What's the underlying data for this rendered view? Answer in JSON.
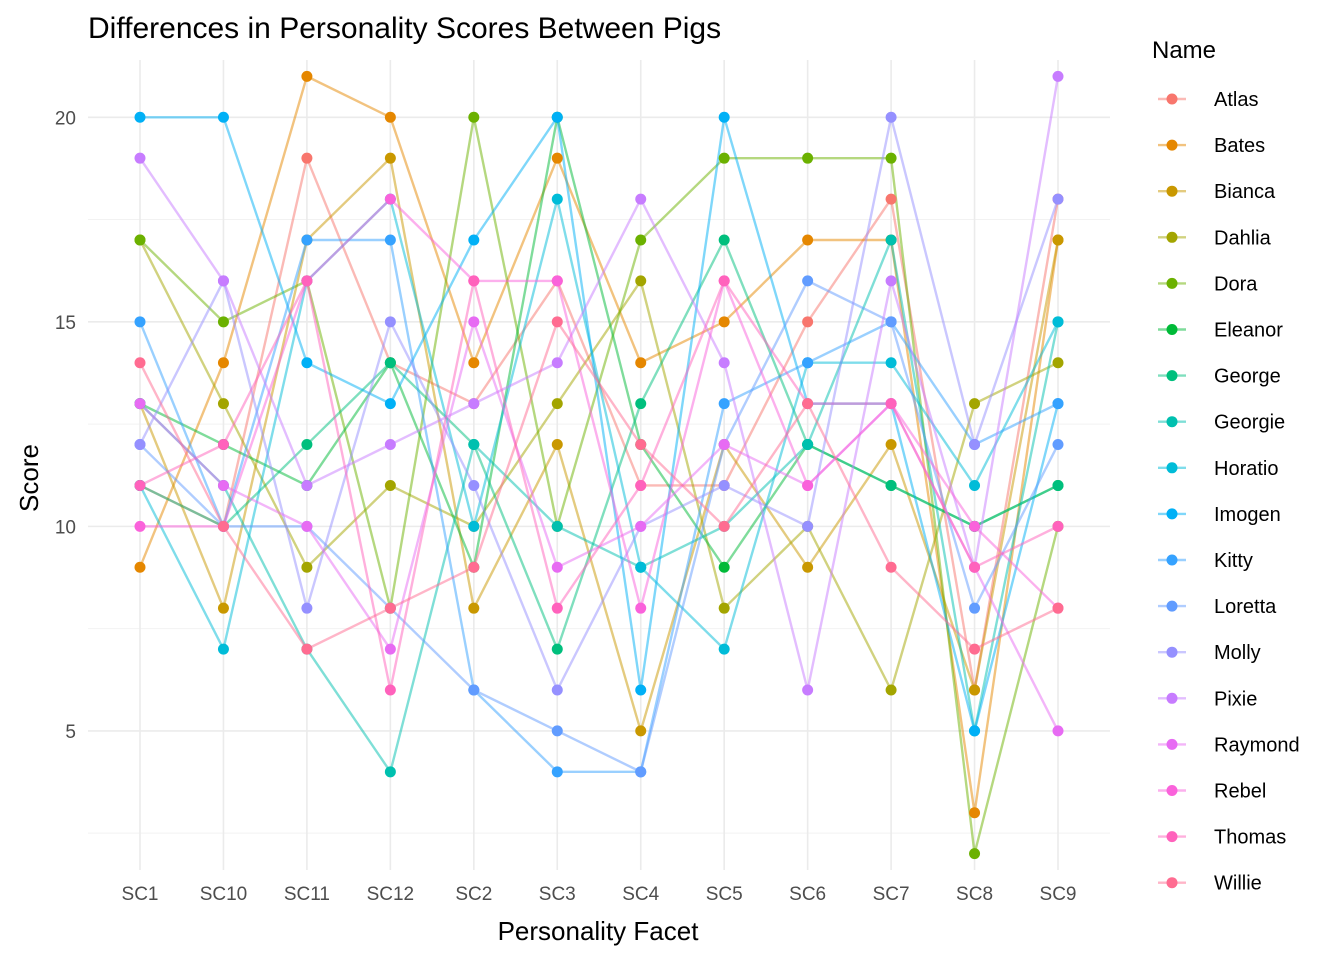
{
  "chart_data": {
    "type": "line",
    "title": "Differences in Personality Scores Between Pigs",
    "xlabel": "Personality Facet",
    "ylabel": "Score",
    "legend_title": "Name",
    "legend_position": "right",
    "grid": true,
    "ylim": [
      1.6,
      21.4
    ],
    "yticks": [
      5,
      10,
      15,
      20
    ],
    "categories": [
      "SC1",
      "SC10",
      "SC11",
      "SC12",
      "SC2",
      "SC3",
      "SC4",
      "SC5",
      "SC6",
      "SC7",
      "SC8",
      "SC9"
    ],
    "series": [
      {
        "name": "Atlas",
        "color": "#F8766D",
        "values": [
          11,
          10,
          19,
          14,
          13,
          16,
          11,
          11,
          15,
          18,
          6,
          18
        ]
      },
      {
        "name": "Bates",
        "color": "#E58700",
        "values": [
          9,
          14,
          21,
          20,
          14,
          19,
          14,
          15,
          17,
          17,
          3,
          17
        ]
      },
      {
        "name": "Bianca",
        "color": "#C99800",
        "values": [
          13,
          8,
          17,
          19,
          8,
          12,
          5,
          12,
          9,
          12,
          6,
          17
        ]
      },
      {
        "name": "Dahlia",
        "color": "#A3A500",
        "values": [
          17,
          13,
          9,
          11,
          10,
          13,
          16,
          8,
          10,
          6,
          13,
          14
        ]
      },
      {
        "name": "Dora",
        "color": "#6BB100",
        "values": [
          17,
          15,
          16,
          8,
          20,
          10,
          17,
          19,
          19,
          19,
          2,
          10
        ]
      },
      {
        "name": "Eleanor",
        "color": "#00BA38",
        "values": [
          13,
          12,
          11,
          14,
          9,
          20,
          12,
          9,
          12,
          11,
          10,
          11
        ]
      },
      {
        "name": "George",
        "color": "#00BF7D",
        "values": [
          11,
          10,
          12,
          14,
          12,
          7,
          13,
          17,
          12,
          11,
          10,
          11
        ]
      },
      {
        "name": "Georgie",
        "color": "#00C0AF",
        "values": [
          13,
          11,
          7,
          4,
          12,
          10,
          9,
          10,
          12,
          17,
          5,
          15
        ]
      },
      {
        "name": "Horatio",
        "color": "#00BCD8",
        "values": [
          11,
          7,
          16,
          18,
          10,
          18,
          9,
          7,
          14,
          14,
          11,
          15
        ]
      },
      {
        "name": "Imogen",
        "color": "#00B0F6",
        "values": [
          20,
          20,
          14,
          13,
          17,
          20,
          6,
          20,
          13,
          13,
          5,
          13
        ]
      },
      {
        "name": "Kitty",
        "color": "#35A2FF",
        "values": [
          15,
          10,
          17,
          17,
          6,
          4,
          4,
          13,
          14,
          15,
          12,
          13
        ]
      },
      {
        "name": "Loretta",
        "color": "#619CFF",
        "values": [
          12,
          10,
          10,
          8,
          6,
          5,
          4,
          12,
          16,
          15,
          8,
          12
        ]
      },
      {
        "name": "Molly",
        "color": "#9590FF",
        "values": [
          12,
          16,
          8,
          15,
          11,
          6,
          10,
          11,
          10,
          20,
          12,
          18
        ]
      },
      {
        "name": "Pixie",
        "color": "#C77CFF",
        "values": [
          19,
          16,
          11,
          12,
          13,
          14,
          18,
          14,
          6,
          16,
          9,
          21
        ]
      },
      {
        "name": "Raymond",
        "color": "#E76BF3",
        "values": [
          13,
          11,
          10,
          7,
          15,
          9,
          10,
          12,
          11,
          13,
          9,
          5
        ]
      },
      {
        "name": "Rebel",
        "color": "#FA62DB",
        "values": [
          10,
          10,
          16,
          18,
          16,
          16,
          8,
          16,
          11,
          13,
          10,
          8
        ]
      },
      {
        "name": "Thomas",
        "color": "#FF62BC",
        "values": [
          11,
          12,
          16,
          6,
          16,
          8,
          11,
          16,
          13,
          13,
          9,
          10
        ]
      },
      {
        "name": "Willie",
        "color": "#FF6C91",
        "values": [
          14,
          10,
          7,
          8,
          9,
          15,
          12,
          10,
          13,
          9,
          7,
          8
        ]
      }
    ]
  }
}
